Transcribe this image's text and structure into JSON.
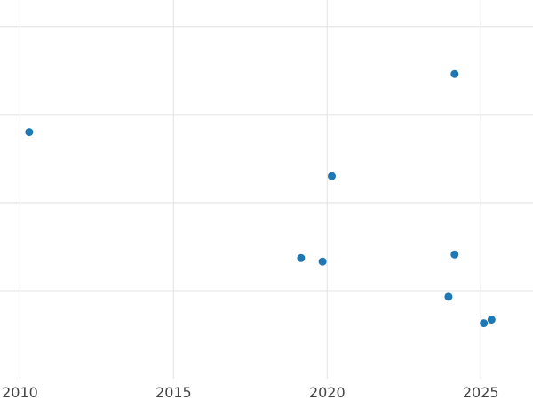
{
  "chart_data": {
    "type": "scatter",
    "title": "",
    "xlabel": "",
    "ylabel": "",
    "xlim": [
      2009.35,
      2026.7
    ],
    "ylim": [
      0,
      4.3
    ],
    "x_ticks": [
      2010,
      2015,
      2020,
      2025
    ],
    "x_tick_labels": [
      "2010",
      "2015",
      "2020",
      "2025"
    ],
    "y_gridlines": [
      1,
      2,
      3,
      4
    ],
    "grid": true,
    "legend": "none",
    "series": [
      {
        "color": "#1f77b4",
        "points": [
          {
            "x": 2010.3,
            "y": 2.8
          },
          {
            "x": 2019.15,
            "y": 1.37
          },
          {
            "x": 2019.85,
            "y": 1.33
          },
          {
            "x": 2020.15,
            "y": 2.3
          },
          {
            "x": 2023.95,
            "y": 0.93
          },
          {
            "x": 2024.15,
            "y": 3.46
          },
          {
            "x": 2024.15,
            "y": 1.41
          },
          {
            "x": 2025.1,
            "y": 0.63
          },
          {
            "x": 2025.35,
            "y": 0.67
          }
        ]
      }
    ]
  }
}
